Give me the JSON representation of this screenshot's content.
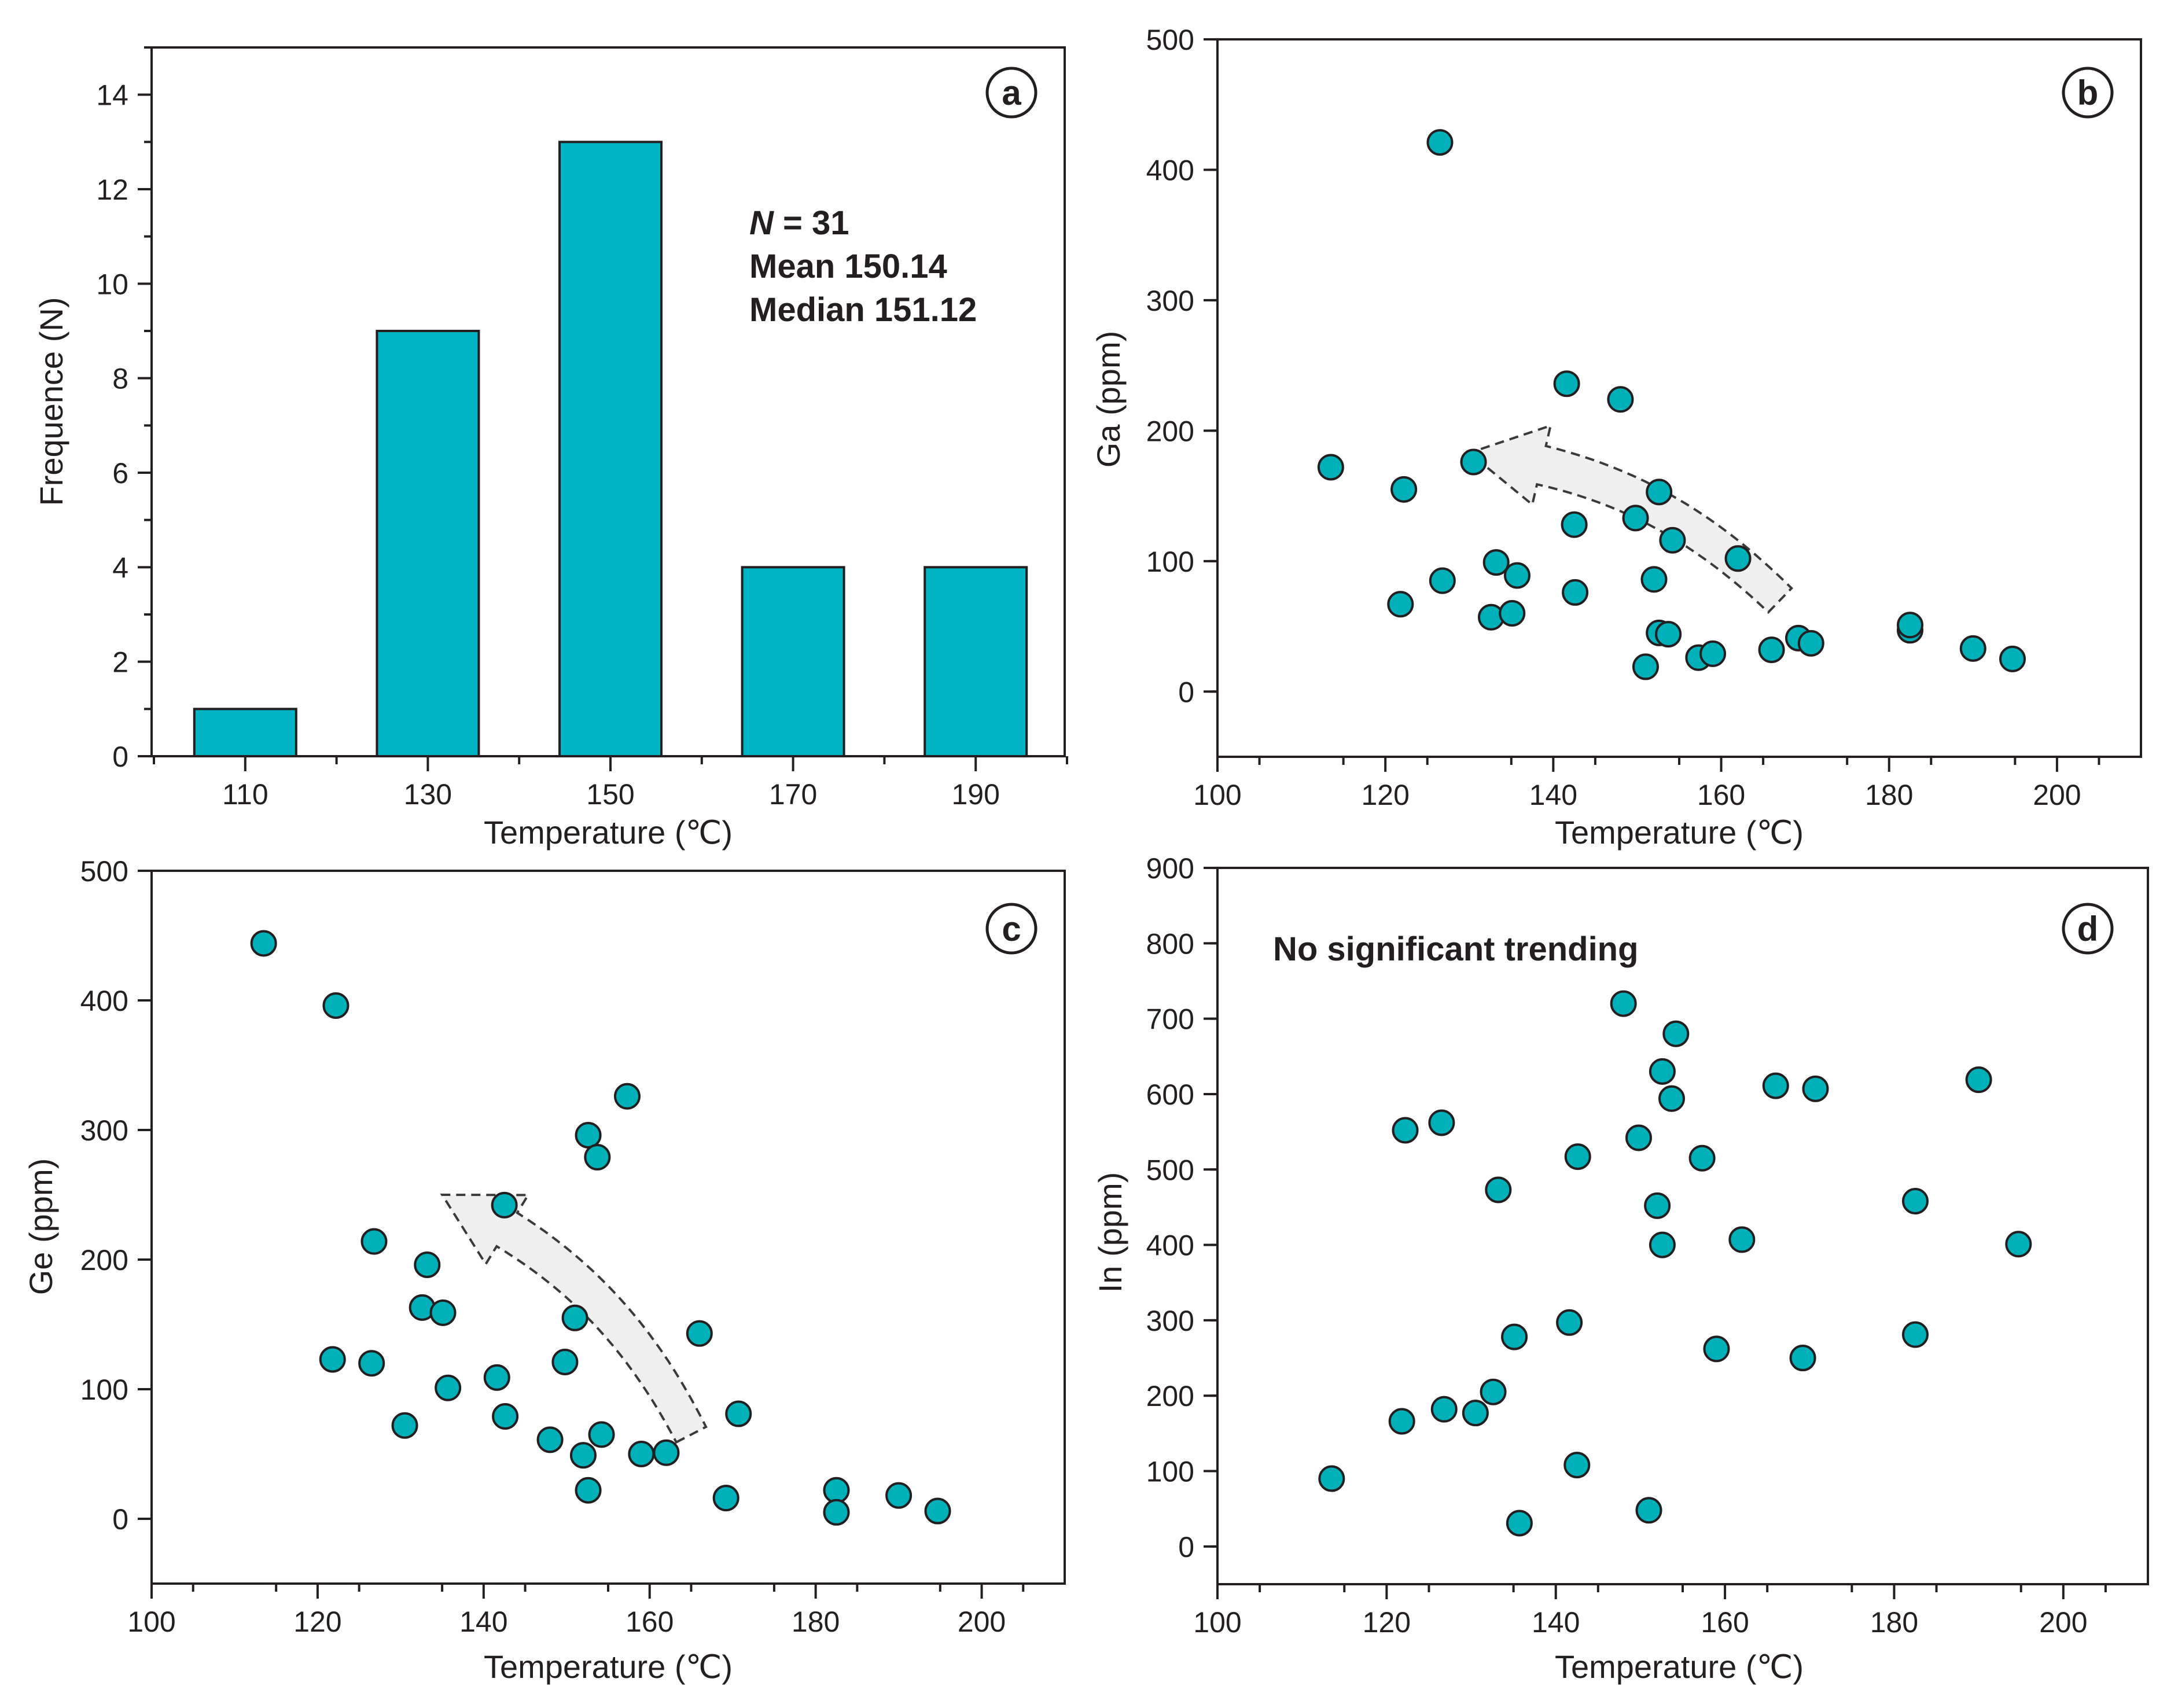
{
  "figure": {
    "colors": {
      "marker": "#00b0b8",
      "bar": "#00b4c4",
      "axis": "#231f20",
      "arrow_fill": "#efefef"
    }
  },
  "chart_data": [
    {
      "id": "a",
      "type": "bar",
      "panel_label": "a",
      "categories": [
        "110",
        "130",
        "150",
        "170",
        "190"
      ],
      "values": [
        1,
        9,
        13,
        4,
        4
      ],
      "xlabel": "Temperature (℃)",
      "ylabel": "Frequence (N)",
      "ylim": [
        0,
        15
      ],
      "yticks": [
        0,
        2,
        4,
        6,
        8,
        10,
        12,
        14
      ],
      "annotation": {
        "n_symbol": "N",
        "n_value": " = 31",
        "mean": "Mean 150.14",
        "median": "Median 151.12"
      },
      "legend": "none"
    },
    {
      "id": "b",
      "type": "scatter",
      "panel_label": "b",
      "xlabel": "Temperature (℃)",
      "ylabel": "Ga (ppm)",
      "xlim": [
        100,
        210
      ],
      "ylim": [
        -50,
        500
      ],
      "xticks": [
        100,
        120,
        140,
        160,
        180,
        200
      ],
      "yticks": [
        0,
        100,
        200,
        300,
        400,
        500
      ],
      "x": [
        126.5,
        113.5,
        122.2,
        121.8,
        126.8,
        130.5,
        132.6,
        133.2,
        135.1,
        135.7,
        141.6,
        142.5,
        142.6,
        148.0,
        149.8,
        151.0,
        152.0,
        152.6,
        152.6,
        153.7,
        154.2,
        157.3,
        159.0,
        162.0,
        166.0,
        169.2,
        170.7,
        182.5,
        182.5,
        190.0,
        194.7
      ],
      "y": [
        421,
        172,
        155,
        67,
        85,
        176,
        57,
        99,
        60,
        89,
        236,
        128,
        76,
        224,
        133,
        19,
        86,
        153,
        45,
        44,
        116,
        26,
        29,
        102,
        32,
        41,
        37,
        47,
        51,
        33,
        25
      ],
      "trend_arrow": {
        "from": [
          167,
          70
        ],
        "to": [
          130,
          183
        ]
      }
    },
    {
      "id": "c",
      "type": "scatter",
      "panel_label": "c",
      "xlabel": "Temperature (℃)",
      "ylabel": "Ge (ppm)",
      "xlim": [
        100,
        210
      ],
      "ylim": [
        -50,
        500
      ],
      "xticks": [
        100,
        120,
        140,
        160,
        180,
        200
      ],
      "yticks": [
        0,
        100,
        200,
        300,
        400,
        500
      ],
      "x": [
        113.5,
        122.2,
        121.8,
        126.8,
        126.5,
        130.5,
        132.6,
        133.2,
        135.1,
        135.7,
        141.6,
        142.5,
        142.6,
        148.0,
        149.8,
        151.0,
        152.0,
        152.6,
        152.6,
        153.7,
        154.2,
        157.3,
        159.0,
        162.0,
        166.0,
        169.2,
        170.7,
        182.5,
        182.5,
        190.0,
        194.7
      ],
      "y": [
        444,
        396,
        123,
        214,
        120,
        72,
        163,
        196,
        159,
        101,
        109,
        242,
        79,
        61,
        121,
        155,
        49,
        296,
        22,
        279,
        65,
        326,
        50,
        51,
        143,
        16,
        81,
        22,
        5,
        18,
        6
      ],
      "trend_arrow": {
        "from": [
          165,
          65
        ],
        "to": [
          135,
          250
        ]
      }
    },
    {
      "id": "d",
      "type": "scatter",
      "panel_label": "d",
      "xlabel": "Temperature (℃)",
      "ylabel": "In (ppm)",
      "xlim": [
        100,
        210
      ],
      "ylim": [
        -50,
        900
      ],
      "xticks": [
        100,
        120,
        140,
        160,
        180,
        200
      ],
      "yticks": [
        0,
        100,
        200,
        300,
        400,
        500,
        600,
        700,
        800,
        900
      ],
      "annotation": "No significant trending",
      "x": [
        113.5,
        121.8,
        122.2,
        126.5,
        126.8,
        130.5,
        132.6,
        133.2,
        135.1,
        135.7,
        141.6,
        142.5,
        142.6,
        148.0,
        149.8,
        151.0,
        152.0,
        152.6,
        152.6,
        153.7,
        154.2,
        157.3,
        159.0,
        162.0,
        166.0,
        169.2,
        170.7,
        182.5,
        182.5,
        190.0,
        194.7
      ],
      "y": [
        90,
        166,
        552,
        562,
        182,
        177,
        205,
        473,
        278,
        31,
        297,
        108,
        517,
        720,
        542,
        48,
        452,
        630,
        400,
        594,
        680,
        515,
        262,
        407,
        611,
        250,
        607,
        458,
        281,
        619,
        401
      ]
    }
  ]
}
